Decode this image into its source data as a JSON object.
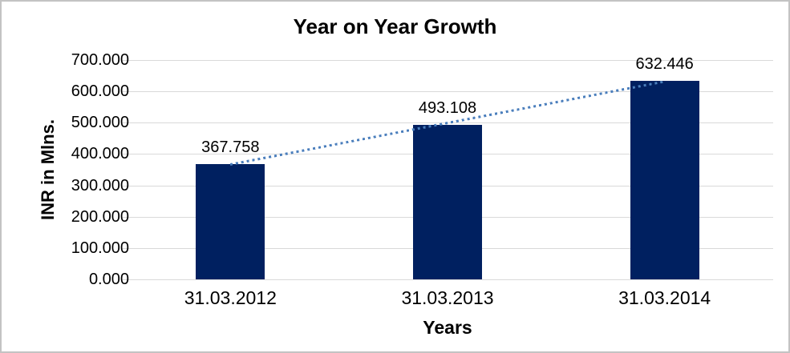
{
  "chart_data": {
    "type": "bar",
    "title": "Year on Year Growth",
    "categories": [
      "31.03.2012",
      "31.03.2013",
      "31.03.2014"
    ],
    "values": [
      367.758,
      493.108,
      632.446
    ],
    "data_labels": [
      "367.758",
      "493.108",
      "632.446"
    ],
    "xlabel": "Years",
    "ylabel": "INR in Mlns.",
    "ylim": [
      0,
      700
    ],
    "ytick_labels": [
      "0.000",
      "100.000",
      "200.000",
      "300.000",
      "400.000",
      "500.000",
      "600.000",
      "700.000"
    ],
    "grid": true,
    "legend": "none",
    "trendline": {
      "type": "linear",
      "style": "dotted"
    },
    "colors": {
      "bar": "#002060",
      "trendline": "#4a7ebc",
      "gridline": "#d9d9d9",
      "text": "#000000",
      "chart_border": "#c3c3c3"
    }
  }
}
